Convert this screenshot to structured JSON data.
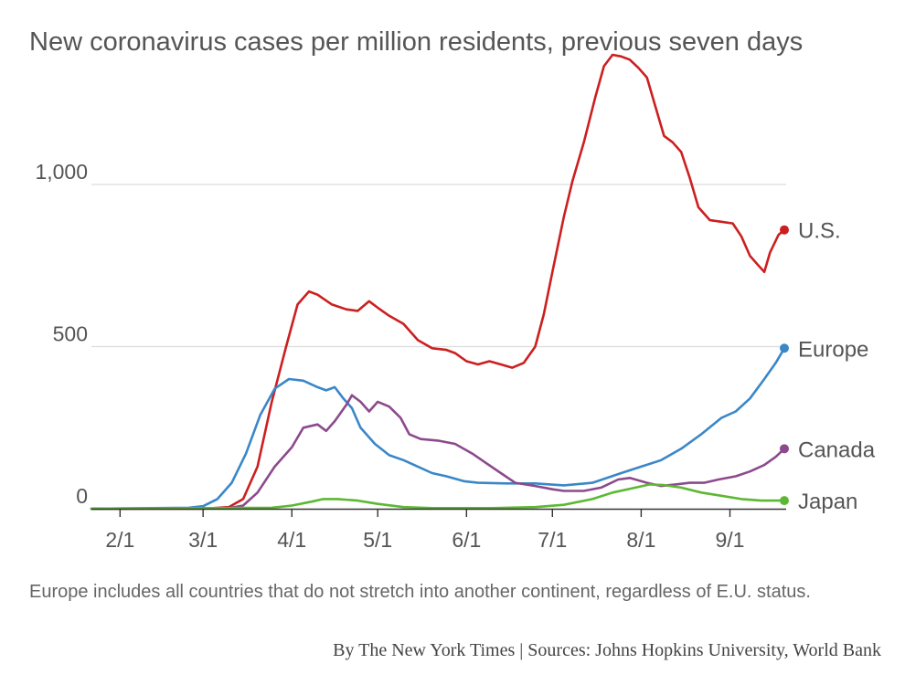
{
  "chart_data": {
    "type": "line",
    "title": "New coronavirus cases per million residents, previous seven days",
    "xlabel": "",
    "ylabel": "",
    "x_domain": [
      "2020-01-22",
      "2020-09-20"
    ],
    "ylim": [
      0,
      1400
    ],
    "yticks": [
      {
        "value": 0,
        "label": "0"
      },
      {
        "value": 500,
        "label": "500"
      },
      {
        "value": 1000,
        "label": "1,000"
      }
    ],
    "xticks": [
      {
        "date": "2020-02-01",
        "label": "2/1"
      },
      {
        "date": "2020-03-01",
        "label": "3/1"
      },
      {
        "date": "2020-04-01",
        "label": "4/1"
      },
      {
        "date": "2020-05-01",
        "label": "5/1"
      },
      {
        "date": "2020-06-01",
        "label": "6/1"
      },
      {
        "date": "2020-07-01",
        "label": "7/1"
      },
      {
        "date": "2020-08-01",
        "label": "8/1"
      },
      {
        "date": "2020-09-01",
        "label": "9/1"
      }
    ],
    "grid": "horizontal",
    "legend": "direct-labels-right",
    "series": [
      {
        "name": "U.S.",
        "color": "#cc1f1f",
        "points": [
          [
            "2020-01-22",
            0
          ],
          [
            "2020-03-01",
            0
          ],
          [
            "2020-03-10",
            5
          ],
          [
            "2020-03-15",
            30
          ],
          [
            "2020-03-20",
            130
          ],
          [
            "2020-03-25",
            330
          ],
          [
            "2020-03-30",
            500
          ],
          [
            "2020-04-03",
            630
          ],
          [
            "2020-04-07",
            670
          ],
          [
            "2020-04-10",
            660
          ],
          [
            "2020-04-15",
            630
          ],
          [
            "2020-04-20",
            615
          ],
          [
            "2020-04-24",
            610
          ],
          [
            "2020-04-28",
            640
          ],
          [
            "2020-05-01",
            620
          ],
          [
            "2020-05-05",
            595
          ],
          [
            "2020-05-10",
            570
          ],
          [
            "2020-05-15",
            520
          ],
          [
            "2020-05-20",
            495
          ],
          [
            "2020-05-25",
            490
          ],
          [
            "2020-05-28",
            480
          ],
          [
            "2020-06-01",
            455
          ],
          [
            "2020-06-05",
            445
          ],
          [
            "2020-06-09",
            455
          ],
          [
            "2020-06-13",
            445
          ],
          [
            "2020-06-17",
            435
          ],
          [
            "2020-06-21",
            450
          ],
          [
            "2020-06-25",
            500
          ],
          [
            "2020-06-28",
            600
          ],
          [
            "2020-07-01",
            730
          ],
          [
            "2020-07-05",
            900
          ],
          [
            "2020-07-08",
            1010
          ],
          [
            "2020-07-12",
            1130
          ],
          [
            "2020-07-16",
            1270
          ],
          [
            "2020-07-19",
            1365
          ],
          [
            "2020-07-22",
            1400
          ],
          [
            "2020-07-25",
            1395
          ],
          [
            "2020-07-28",
            1385
          ],
          [
            "2020-07-31",
            1360
          ],
          [
            "2020-08-03",
            1330
          ],
          [
            "2020-08-06",
            1240
          ],
          [
            "2020-08-09",
            1150
          ],
          [
            "2020-08-12",
            1130
          ],
          [
            "2020-08-15",
            1100
          ],
          [
            "2020-08-18",
            1020
          ],
          [
            "2020-08-21",
            930
          ],
          [
            "2020-08-25",
            890
          ],
          [
            "2020-08-29",
            885
          ],
          [
            "2020-09-02",
            880
          ],
          [
            "2020-09-05",
            840
          ],
          [
            "2020-09-08",
            780
          ],
          [
            "2020-09-11",
            750
          ],
          [
            "2020-09-13",
            730
          ],
          [
            "2020-09-15",
            790
          ],
          [
            "2020-09-18",
            845
          ],
          [
            "2020-09-20",
            860
          ]
        ],
        "end_label": "U.S."
      },
      {
        "name": "Europe",
        "color": "#3a87c8",
        "points": [
          [
            "2020-01-22",
            0
          ],
          [
            "2020-02-25",
            3
          ],
          [
            "2020-03-01",
            8
          ],
          [
            "2020-03-06",
            30
          ],
          [
            "2020-03-11",
            80
          ],
          [
            "2020-03-16",
            170
          ],
          [
            "2020-03-21",
            290
          ],
          [
            "2020-03-26",
            370
          ],
          [
            "2020-03-31",
            400
          ],
          [
            "2020-04-05",
            395
          ],
          [
            "2020-04-10",
            375
          ],
          [
            "2020-04-13",
            365
          ],
          [
            "2020-04-16",
            375
          ],
          [
            "2020-04-19",
            340
          ],
          [
            "2020-04-22",
            310
          ],
          [
            "2020-04-25",
            250
          ],
          [
            "2020-04-30",
            200
          ],
          [
            "2020-05-05",
            165
          ],
          [
            "2020-05-10",
            150
          ],
          [
            "2020-05-15",
            130
          ],
          [
            "2020-05-20",
            110
          ],
          [
            "2020-05-25",
            100
          ],
          [
            "2020-05-31",
            85
          ],
          [
            "2020-06-05",
            80
          ],
          [
            "2020-06-15",
            78
          ],
          [
            "2020-06-25",
            78
          ],
          [
            "2020-07-05",
            72
          ],
          [
            "2020-07-15",
            80
          ],
          [
            "2020-07-25",
            110
          ],
          [
            "2020-08-01",
            130
          ],
          [
            "2020-08-08",
            150
          ],
          [
            "2020-08-15",
            185
          ],
          [
            "2020-08-22",
            230
          ],
          [
            "2020-08-29",
            280
          ],
          [
            "2020-09-03",
            300
          ],
          [
            "2020-09-08",
            340
          ],
          [
            "2020-09-13",
            400
          ],
          [
            "2020-09-17",
            450
          ],
          [
            "2020-09-20",
            495
          ]
        ],
        "end_label": "Europe"
      },
      {
        "name": "Canada",
        "color": "#8c4a8c",
        "points": [
          [
            "2020-01-22",
            0
          ],
          [
            "2020-03-10",
            2
          ],
          [
            "2020-03-15",
            10
          ],
          [
            "2020-03-20",
            50
          ],
          [
            "2020-03-26",
            130
          ],
          [
            "2020-04-01",
            190
          ],
          [
            "2020-04-05",
            250
          ],
          [
            "2020-04-10",
            260
          ],
          [
            "2020-04-13",
            240
          ],
          [
            "2020-04-16",
            270
          ],
          [
            "2020-04-20",
            320
          ],
          [
            "2020-04-22",
            350
          ],
          [
            "2020-04-25",
            330
          ],
          [
            "2020-04-28",
            300
          ],
          [
            "2020-05-01",
            330
          ],
          [
            "2020-05-05",
            315
          ],
          [
            "2020-05-09",
            280
          ],
          [
            "2020-05-12",
            230
          ],
          [
            "2020-05-16",
            215
          ],
          [
            "2020-05-22",
            210
          ],
          [
            "2020-05-28",
            200
          ],
          [
            "2020-06-03",
            170
          ],
          [
            "2020-06-08",
            140
          ],
          [
            "2020-06-13",
            110
          ],
          [
            "2020-06-18",
            80
          ],
          [
            "2020-06-25",
            70
          ],
          [
            "2020-07-01",
            60
          ],
          [
            "2020-07-05",
            55
          ],
          [
            "2020-07-12",
            55
          ],
          [
            "2020-07-18",
            65
          ],
          [
            "2020-07-24",
            90
          ],
          [
            "2020-07-28",
            95
          ],
          [
            "2020-08-03",
            80
          ],
          [
            "2020-08-08",
            70
          ],
          [
            "2020-08-13",
            75
          ],
          [
            "2020-08-18",
            80
          ],
          [
            "2020-08-23",
            80
          ],
          [
            "2020-08-28",
            90
          ],
          [
            "2020-09-03",
            100
          ],
          [
            "2020-09-08",
            115
          ],
          [
            "2020-09-13",
            135
          ],
          [
            "2020-09-17",
            160
          ],
          [
            "2020-09-20",
            185
          ]
        ],
        "end_label": "Canada"
      },
      {
        "name": "Japan",
        "color": "#5cb832",
        "points": [
          [
            "2020-01-22",
            0
          ],
          [
            "2020-03-25",
            3
          ],
          [
            "2020-04-01",
            10
          ],
          [
            "2020-04-08",
            22
          ],
          [
            "2020-04-12",
            30
          ],
          [
            "2020-04-17",
            30
          ],
          [
            "2020-04-24",
            25
          ],
          [
            "2020-05-01",
            15
          ],
          [
            "2020-05-10",
            5
          ],
          [
            "2020-05-20",
            2
          ],
          [
            "2020-06-10",
            2
          ],
          [
            "2020-06-25",
            5
          ],
          [
            "2020-07-05",
            12
          ],
          [
            "2020-07-15",
            30
          ],
          [
            "2020-07-22",
            50
          ],
          [
            "2020-07-30",
            65
          ],
          [
            "2020-08-04",
            75
          ],
          [
            "2020-08-09",
            73
          ],
          [
            "2020-08-15",
            65
          ],
          [
            "2020-08-22",
            50
          ],
          [
            "2020-08-29",
            40
          ],
          [
            "2020-09-05",
            30
          ],
          [
            "2020-09-12",
            25
          ],
          [
            "2020-09-20",
            25
          ]
        ],
        "end_label": "Japan"
      }
    ]
  },
  "footnote": "Europe includes all countries that do not stretch into another continent, regardless of E.U. status.",
  "byline": "By The New York Times | Sources: Johns Hopkins University, World Bank"
}
